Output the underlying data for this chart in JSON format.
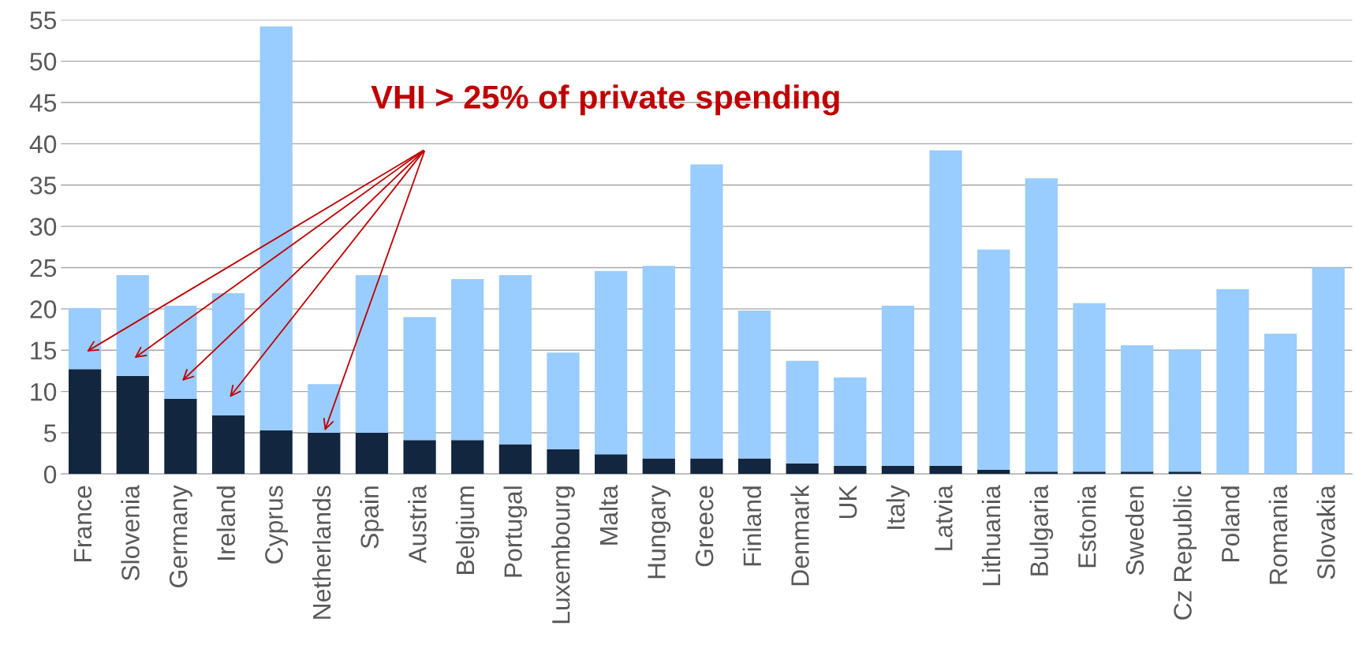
{
  "chart_data": {
    "type": "bar",
    "stacked": true,
    "categories": [
      "France",
      "Slovenia",
      "Germany",
      "Ireland",
      "Cyprus",
      "Netherlands",
      "Spain",
      "Austria",
      "Belgium",
      "Portugal",
      "Luxembourg",
      "Malta",
      "Hungary",
      "Greece",
      "Finland",
      "Denmark",
      "UK",
      "Italy",
      "Latvia",
      "Lithuania",
      "Bulgaria",
      "Estonia",
      "Sweden",
      "Cz Republic",
      "Poland",
      "Romania",
      "Slovakia"
    ],
    "series": [
      {
        "color": "#13263f",
        "values": [
          12.7,
          11.9,
          9.1,
          7.1,
          5.3,
          5.0,
          5.0,
          4.1,
          4.1,
          3.6,
          3.0,
          2.4,
          1.9,
          1.9,
          1.9,
          1.3,
          1.0,
          1.0,
          1.0,
          0.5,
          0.3,
          0.3,
          0.3,
          0.3,
          0,
          0,
          0
        ]
      },
      {
        "color": "#99ccff",
        "values": [
          7.4,
          12.2,
          11.3,
          14.8,
          48.9,
          5.9,
          19.1,
          14.9,
          19.5,
          20.5,
          11.7,
          22.2,
          23.3,
          35.6,
          17.9,
          12.4,
          10.7,
          19.4,
          38.2,
          26.7,
          35.5,
          20.4,
          15.3,
          14.8,
          22.4,
          17.0,
          25.0
        ]
      }
    ],
    "ylim": [
      0,
      55
    ],
    "yticks": [
      0,
      5,
      10,
      15,
      20,
      25,
      30,
      35,
      40,
      45,
      50,
      55
    ],
    "grid": "y",
    "legend": false,
    "annotations": [
      "VHI > 25% of private spending"
    ]
  }
}
